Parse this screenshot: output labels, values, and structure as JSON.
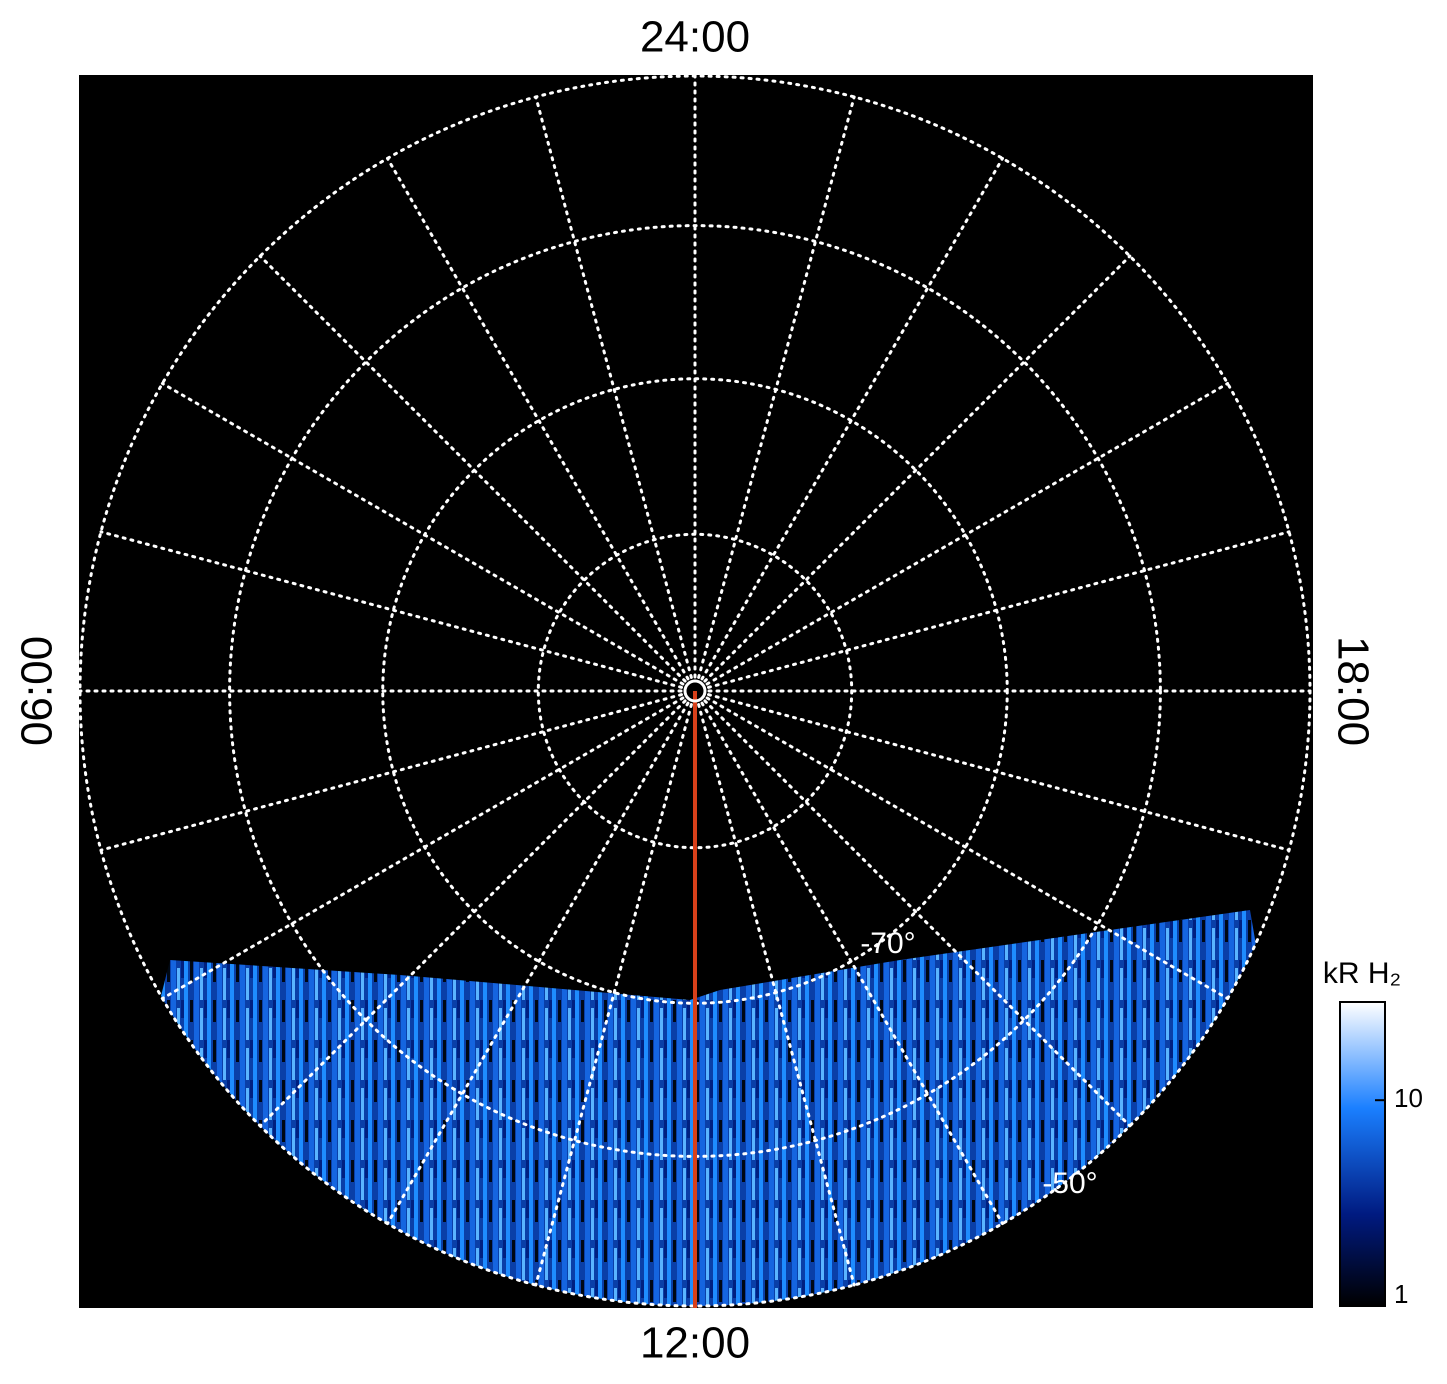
{
  "chart_data": {
    "type": "polar",
    "time_labels": {
      "top": "24:00",
      "bottom": "12:00",
      "left": "06:00",
      "right": "18:00"
    },
    "latlim": [
      -90,
      -50
    ],
    "lat_circles": [
      -80,
      -70,
      -60,
      -50
    ],
    "lat_labels": [
      {
        "value": -70,
        "label": "-70°"
      },
      {
        "value": -50,
        "label": "-50°"
      }
    ],
    "colorbar": {
      "label": "kR H₂",
      "scale": "log",
      "clim": [
        1,
        30
      ],
      "ticks": [
        1,
        10
      ]
    }
  }
}
